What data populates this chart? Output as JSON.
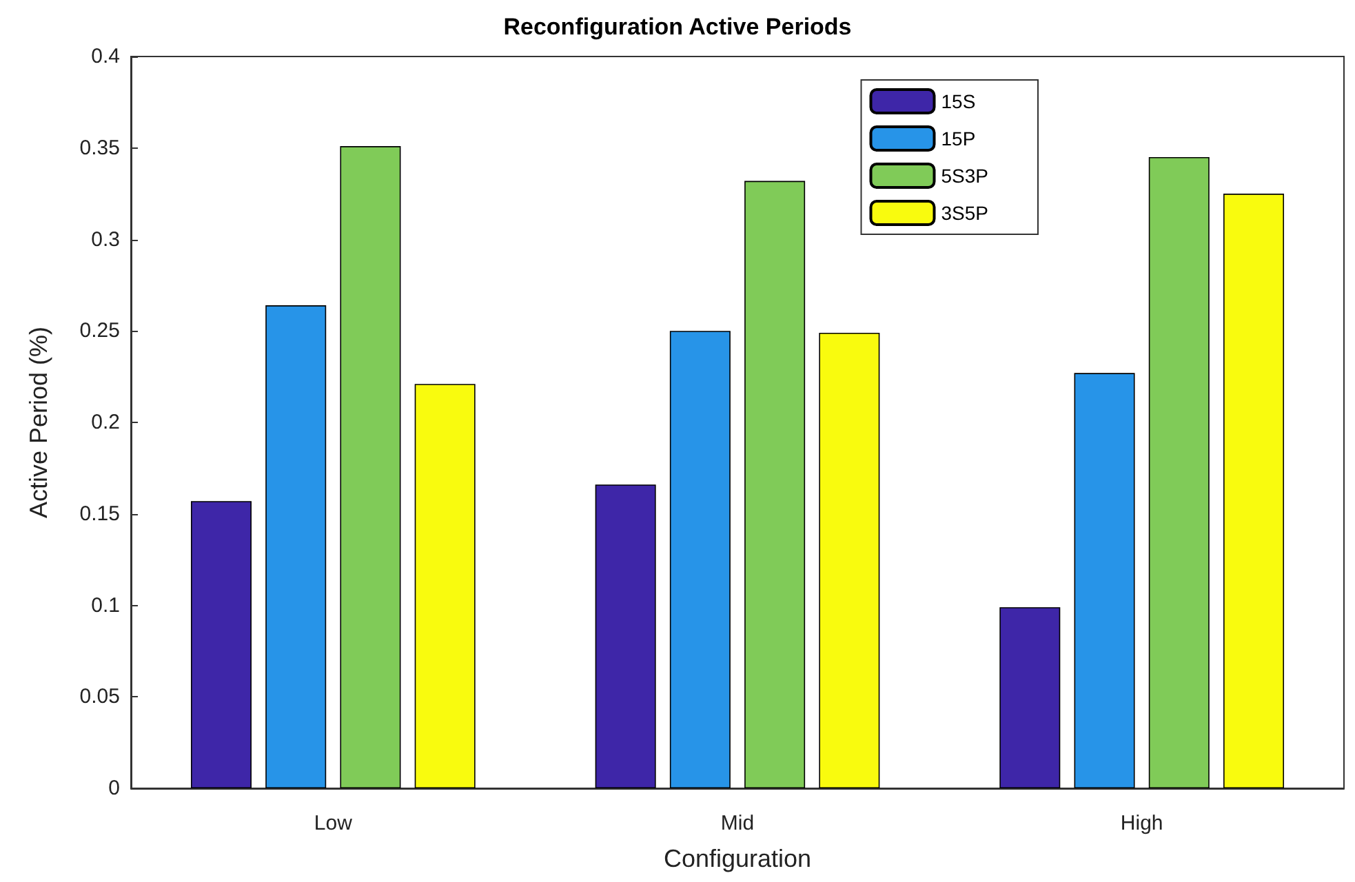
{
  "chart_data": {
    "type": "bar",
    "title": "Reconfiguration Active Periods",
    "xlabel": "Configuration",
    "ylabel": "Active Period (%)",
    "categories": [
      "Low",
      "Mid",
      "High"
    ],
    "series": [
      {
        "name": "15S",
        "color": "#3e26a8",
        "values": [
          0.157,
          0.166,
          0.099
        ]
      },
      {
        "name": "15P",
        "color": "#2794e8",
        "values": [
          0.264,
          0.25,
          0.227
        ]
      },
      {
        "name": "5S3P",
        "color": "#80cb58",
        "values": [
          0.351,
          0.332,
          0.345
        ]
      },
      {
        "name": "3S5P",
        "color": "#f9fb0e",
        "values": [
          0.221,
          0.249,
          0.325
        ]
      }
    ],
    "ylim": [
      0,
      0.4
    ],
    "yticks": [
      0,
      0.05,
      0.1,
      0.15,
      0.2,
      0.25,
      0.3,
      0.35,
      0.4
    ],
    "grid": false,
    "legend": "top right"
  }
}
